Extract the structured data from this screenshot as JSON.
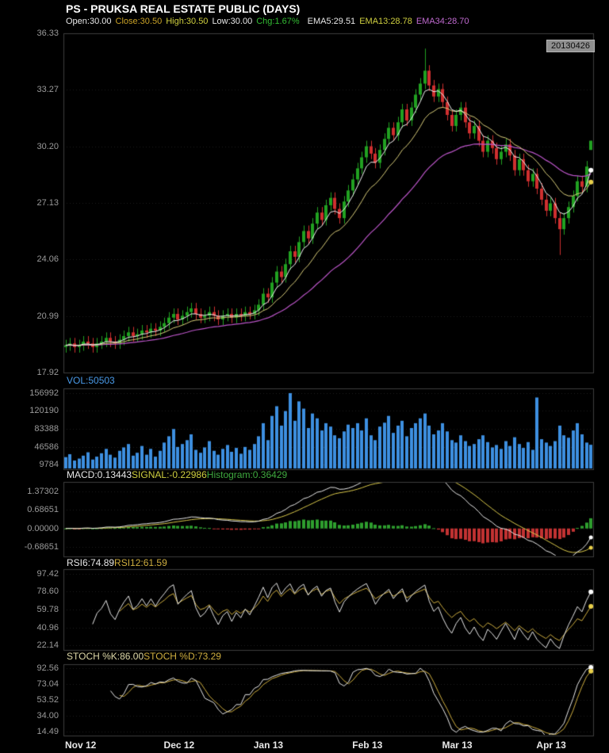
{
  "header": {
    "title": "PS - PRUKSA REAL ESTATE PUBLIC (DAYS)",
    "date_badge": "20130426",
    "quote": {
      "open": "Open:30.00",
      "close": "Close:30.50",
      "high": "High:30.50",
      "low": "Low:30.00",
      "chg": "Chg:1.67%",
      "ema5": "EMA5:29.51",
      "ema13": "EMA13:28.78",
      "ema34": "EMA34:28.70"
    }
  },
  "panels": {
    "volume": {
      "label": "VOL:50503"
    },
    "macd": {
      "label_macd": "MACD:0.13443",
      "label_signal": "SIGNAL:-0.22986",
      "label_hist": "Histogram:0.36429"
    },
    "rsi": {
      "label_rsi6": "RSI6:74.89",
      "label_rsi12": "RSI12:61.59"
    },
    "stoch": {
      "label_k": "STOCH %K:86.00",
      "label_d": "STOCH %D:73.29"
    }
  },
  "colors": {
    "background": "#000000",
    "candle_up": "#21a121",
    "candle_down": "#cf2f2f",
    "volume_bar": "#3d8fe0",
    "ema5": "#f2f2f2",
    "ema13": "#d9cd7a",
    "ema34": "#bb55c8",
    "macd_line": "#e8e8e8",
    "signal_line": "#d9c84a",
    "hist_up": "#2e9e2e",
    "hist_down": "#c23232",
    "rsi6_line": "#e8e8e8",
    "rsi12_line": "#cfae3f",
    "stoch_k_line": "#e8e8e8",
    "stoch_d_line": "#cfae3f",
    "grid": "rgba(255,255,255,0.12)",
    "panel_border": "#3c3c3c",
    "axis_text": "#9a9a9a",
    "dot_white": "#ffffff",
    "dot_yellow": "#e8cf4a"
  },
  "chart_data": {
    "type": "candlestick",
    "title": "PS - PRUKSA REAL ESTATE PUBLIC (DAYS)",
    "x_axis_labels": [
      "Nov 12",
      "Dec 12",
      "Jan 13",
      "Feb 13",
      "Mar 13",
      "Apr 13"
    ],
    "month_start_indices": [
      0,
      22,
      42,
      64,
      84,
      105
    ],
    "price_ticks": [
      "36.33",
      "33.27",
      "30.20",
      "27.13",
      "24.06",
      "20.99",
      "17.92"
    ],
    "volume_ticks": [
      "156992",
      "120190",
      "83388",
      "46586",
      "9784"
    ],
    "macd_ticks": [
      "1.37302",
      "0.68651",
      "0.00000",
      "-0.68651"
    ],
    "rsi_ticks": [
      "97.42",
      "78.60",
      "59.78",
      "40.96",
      "22.14"
    ],
    "stoch_ticks": [
      "92.56",
      "73.04",
      "53.52",
      "34.00",
      "14.49"
    ],
    "ylim": [
      17.92,
      36.33
    ],
    "volume_ylim": [
      0,
      166776
    ],
    "macd_ylim": [
      -1.03,
      1.716
    ],
    "rsi_ylim": [
      17.5,
      102.1
    ],
    "stoch_ylim": [
      9.6,
      97.4
    ],
    "indicators": {
      "ema_periods": [
        5,
        13,
        34
      ],
      "macd_params": [
        12,
        26,
        9
      ],
      "rsi_periods": [
        6,
        12
      ],
      "stoch_params": [
        9,
        3,
        3
      ]
    },
    "open": [
      19.3,
      19.4,
      19.5,
      19.3,
      19.4,
      19.6,
      19.5,
      19.3,
      19.5,
      19.6,
      19.8,
      19.6,
      19.5,
      19.7,
      19.9,
      20.1,
      19.9,
      20.0,
      20.2,
      20.1,
      20.3,
      20.2,
      20.4,
      20.6,
      20.9,
      21.1,
      20.8,
      21.0,
      21.2,
      21.4,
      21.1,
      20.9,
      21.0,
      21.2,
      21.0,
      20.8,
      21.0,
      21.1,
      20.9,
      21.1,
      21.0,
      21.2,
      21.1,
      21.3,
      21.6,
      22.2,
      22.0,
      22.8,
      23.4,
      23.1,
      23.8,
      24.5,
      24.2,
      25.0,
      25.6,
      25.2,
      26.0,
      26.6,
      26.2,
      27.0,
      27.4,
      26.8,
      26.3,
      27.2,
      27.8,
      28.4,
      29.0,
      29.6,
      30.2,
      29.8,
      29.3,
      30.0,
      30.6,
      31.2,
      30.8,
      31.5,
      32.2,
      31.6,
      32.3,
      33.0,
      33.6,
      34.3,
      33.5,
      32.9,
      33.3,
      32.6,
      31.9,
      31.3,
      31.9,
      32.3,
      31.5,
      30.9,
      31.3,
      30.5,
      29.9,
      30.5,
      30.1,
      29.5,
      29.9,
      30.3,
      29.7,
      28.9,
      29.5,
      28.9,
      28.3,
      28.7,
      27.9,
      27.3,
      26.7,
      27.1,
      26.3,
      25.7,
      26.3,
      26.9,
      27.5,
      28.3,
      28.0,
      30.0
    ],
    "high": [
      19.7,
      19.8,
      19.8,
      19.7,
      19.9,
      19.9,
      19.8,
      19.8,
      19.9,
      20.1,
      20.1,
      19.9,
      20.0,
      20.2,
      20.4,
      20.4,
      20.3,
      20.5,
      20.5,
      20.6,
      20.6,
      20.7,
      20.9,
      21.2,
      21.4,
      21.4,
      21.3,
      21.5,
      21.7,
      21.7,
      21.4,
      21.3,
      21.5,
      21.5,
      21.3,
      21.3,
      21.4,
      21.4,
      21.4,
      21.4,
      21.5,
      21.5,
      21.6,
      21.9,
      22.5,
      22.5,
      23.1,
      23.7,
      23.7,
      24.1,
      24.8,
      24.8,
      25.3,
      25.9,
      25.9,
      26.3,
      26.9,
      26.9,
      27.3,
      27.7,
      27.7,
      27.1,
      27.5,
      28.1,
      28.7,
      29.3,
      29.9,
      30.5,
      30.5,
      30.1,
      30.3,
      30.9,
      31.5,
      31.5,
      31.8,
      32.5,
      32.5,
      32.6,
      33.3,
      33.9,
      35.5,
      34.6,
      33.8,
      33.6,
      33.6,
      32.9,
      32.2,
      32.2,
      32.6,
      32.6,
      31.8,
      31.6,
      31.6,
      30.8,
      30.8,
      30.8,
      30.4,
      30.2,
      30.6,
      30.6,
      30.0,
      29.8,
      29.8,
      29.2,
      29.0,
      29.0,
      28.2,
      27.6,
      27.4,
      27.4,
      26.6,
      26.6,
      27.2,
      27.8,
      28.6,
      28.6,
      29.4,
      30.5
    ],
    "low": [
      19.0,
      19.1,
      19.0,
      19.0,
      19.1,
      19.2,
      19.0,
      19.0,
      19.2,
      19.3,
      19.3,
      19.2,
      19.2,
      19.4,
      19.6,
      19.6,
      19.6,
      19.7,
      19.8,
      19.8,
      19.9,
      19.9,
      20.1,
      20.3,
      20.6,
      20.5,
      20.5,
      20.7,
      20.9,
      20.8,
      20.6,
      20.6,
      20.7,
      20.7,
      20.5,
      20.5,
      20.7,
      20.6,
      20.6,
      20.7,
      20.7,
      20.8,
      20.8,
      21.0,
      21.3,
      21.7,
      21.7,
      22.5,
      22.8,
      22.8,
      23.5,
      23.9,
      23.9,
      24.7,
      24.9,
      24.9,
      25.7,
      25.9,
      25.9,
      26.7,
      26.5,
      26.0,
      26.0,
      26.9,
      27.5,
      28.1,
      28.7,
      29.3,
      29.5,
      29.0,
      29.0,
      29.7,
      30.3,
      30.5,
      30.5,
      31.2,
      31.3,
      31.3,
      32.0,
      32.7,
      33.3,
      33.2,
      32.6,
      32.6,
      32.3,
      31.6,
      31.0,
      31.0,
      31.6,
      31.2,
      30.6,
      30.6,
      30.2,
      29.6,
      29.6,
      29.8,
      29.2,
      29.2,
      29.6,
      29.4,
      28.6,
      28.6,
      28.6,
      28.0,
      28.0,
      27.6,
      27.0,
      26.4,
      26.4,
      26.0,
      24.3,
      25.4,
      26.0,
      26.6,
      27.2,
      27.7,
      27.7,
      30.0
    ],
    "close": [
      19.4,
      19.5,
      19.3,
      19.4,
      19.6,
      19.5,
      19.3,
      19.5,
      19.6,
      19.8,
      19.6,
      19.5,
      19.7,
      19.9,
      20.1,
      19.9,
      20.0,
      20.2,
      20.1,
      20.3,
      20.2,
      20.4,
      20.6,
      20.9,
      21.1,
      20.8,
      21.0,
      21.2,
      21.4,
      21.1,
      20.9,
      21.0,
      21.2,
      21.0,
      20.8,
      21.0,
      21.1,
      20.9,
      21.1,
      21.0,
      21.2,
      21.1,
      21.3,
      21.6,
      22.2,
      22.0,
      22.8,
      23.4,
      23.1,
      23.8,
      24.5,
      24.2,
      25.0,
      25.6,
      25.2,
      26.0,
      26.6,
      26.2,
      27.0,
      27.4,
      26.8,
      26.3,
      27.2,
      27.8,
      28.4,
      29.0,
      29.6,
      30.2,
      29.8,
      29.3,
      30.0,
      30.6,
      31.2,
      30.8,
      31.5,
      32.2,
      31.6,
      32.3,
      33.0,
      33.6,
      34.3,
      33.5,
      32.9,
      33.3,
      32.6,
      31.9,
      31.3,
      31.9,
      32.3,
      31.5,
      30.9,
      31.3,
      30.5,
      29.9,
      30.5,
      30.1,
      29.5,
      29.9,
      30.3,
      29.7,
      28.9,
      29.5,
      28.9,
      28.3,
      28.7,
      27.9,
      27.3,
      26.7,
      27.1,
      26.3,
      25.7,
      26.3,
      26.9,
      27.5,
      28.3,
      28.0,
      29.1,
      30.5
    ],
    "volume": [
      25000,
      31000,
      18000,
      22000,
      28000,
      35000,
      20000,
      26000,
      33000,
      42000,
      30000,
      24000,
      38000,
      45000,
      52000,
      28000,
      34000,
      48000,
      30000,
      42000,
      26000,
      38000,
      55000,
      68000,
      83000,
      46000,
      52000,
      60000,
      72000,
      40000,
      34000,
      45000,
      58000,
      38000,
      30000,
      42000,
      50000,
      36000,
      44000,
      32000,
      46000,
      40000,
      52000,
      68000,
      95000,
      60000,
      110000,
      130000,
      90000,
      120000,
      157000,
      100000,
      140000,
      125000,
      85000,
      115000,
      105000,
      80000,
      95000,
      88000,
      70000,
      64000,
      78000,
      92000,
      85000,
      95000,
      80000,
      105000,
      70000,
      60000,
      88000,
      96000,
      110000,
      75000,
      90000,
      100000,
      68000,
      85000,
      95000,
      105000,
      115000,
      90000,
      72000,
      80000,
      95000,
      78000,
      60000,
      55000,
      70000,
      58000,
      48000,
      52000,
      62000,
      70000,
      56000,
      45000,
      50000,
      42000,
      58000,
      48000,
      66000,
      52000,
      44000,
      56000,
      40000,
      148000,
      62000,
      55000,
      48000,
      58000,
      90000,
      70000,
      65000,
      80000,
      95000,
      72000,
      55000,
      50503
    ],
    "last_values": {
      "open": 30.0,
      "close": 30.5,
      "high": 30.5,
      "low": 30.0,
      "chg_pct": 1.67,
      "ema5": 29.51,
      "ema13": 28.78,
      "ema34": 28.7,
      "vol": 50503,
      "macd": 0.13443,
      "signal": -0.22986,
      "histogram": 0.36429,
      "rsi6": 74.89,
      "rsi12": 61.59,
      "stoch_k": 86.0,
      "stoch_d": 73.29
    }
  }
}
